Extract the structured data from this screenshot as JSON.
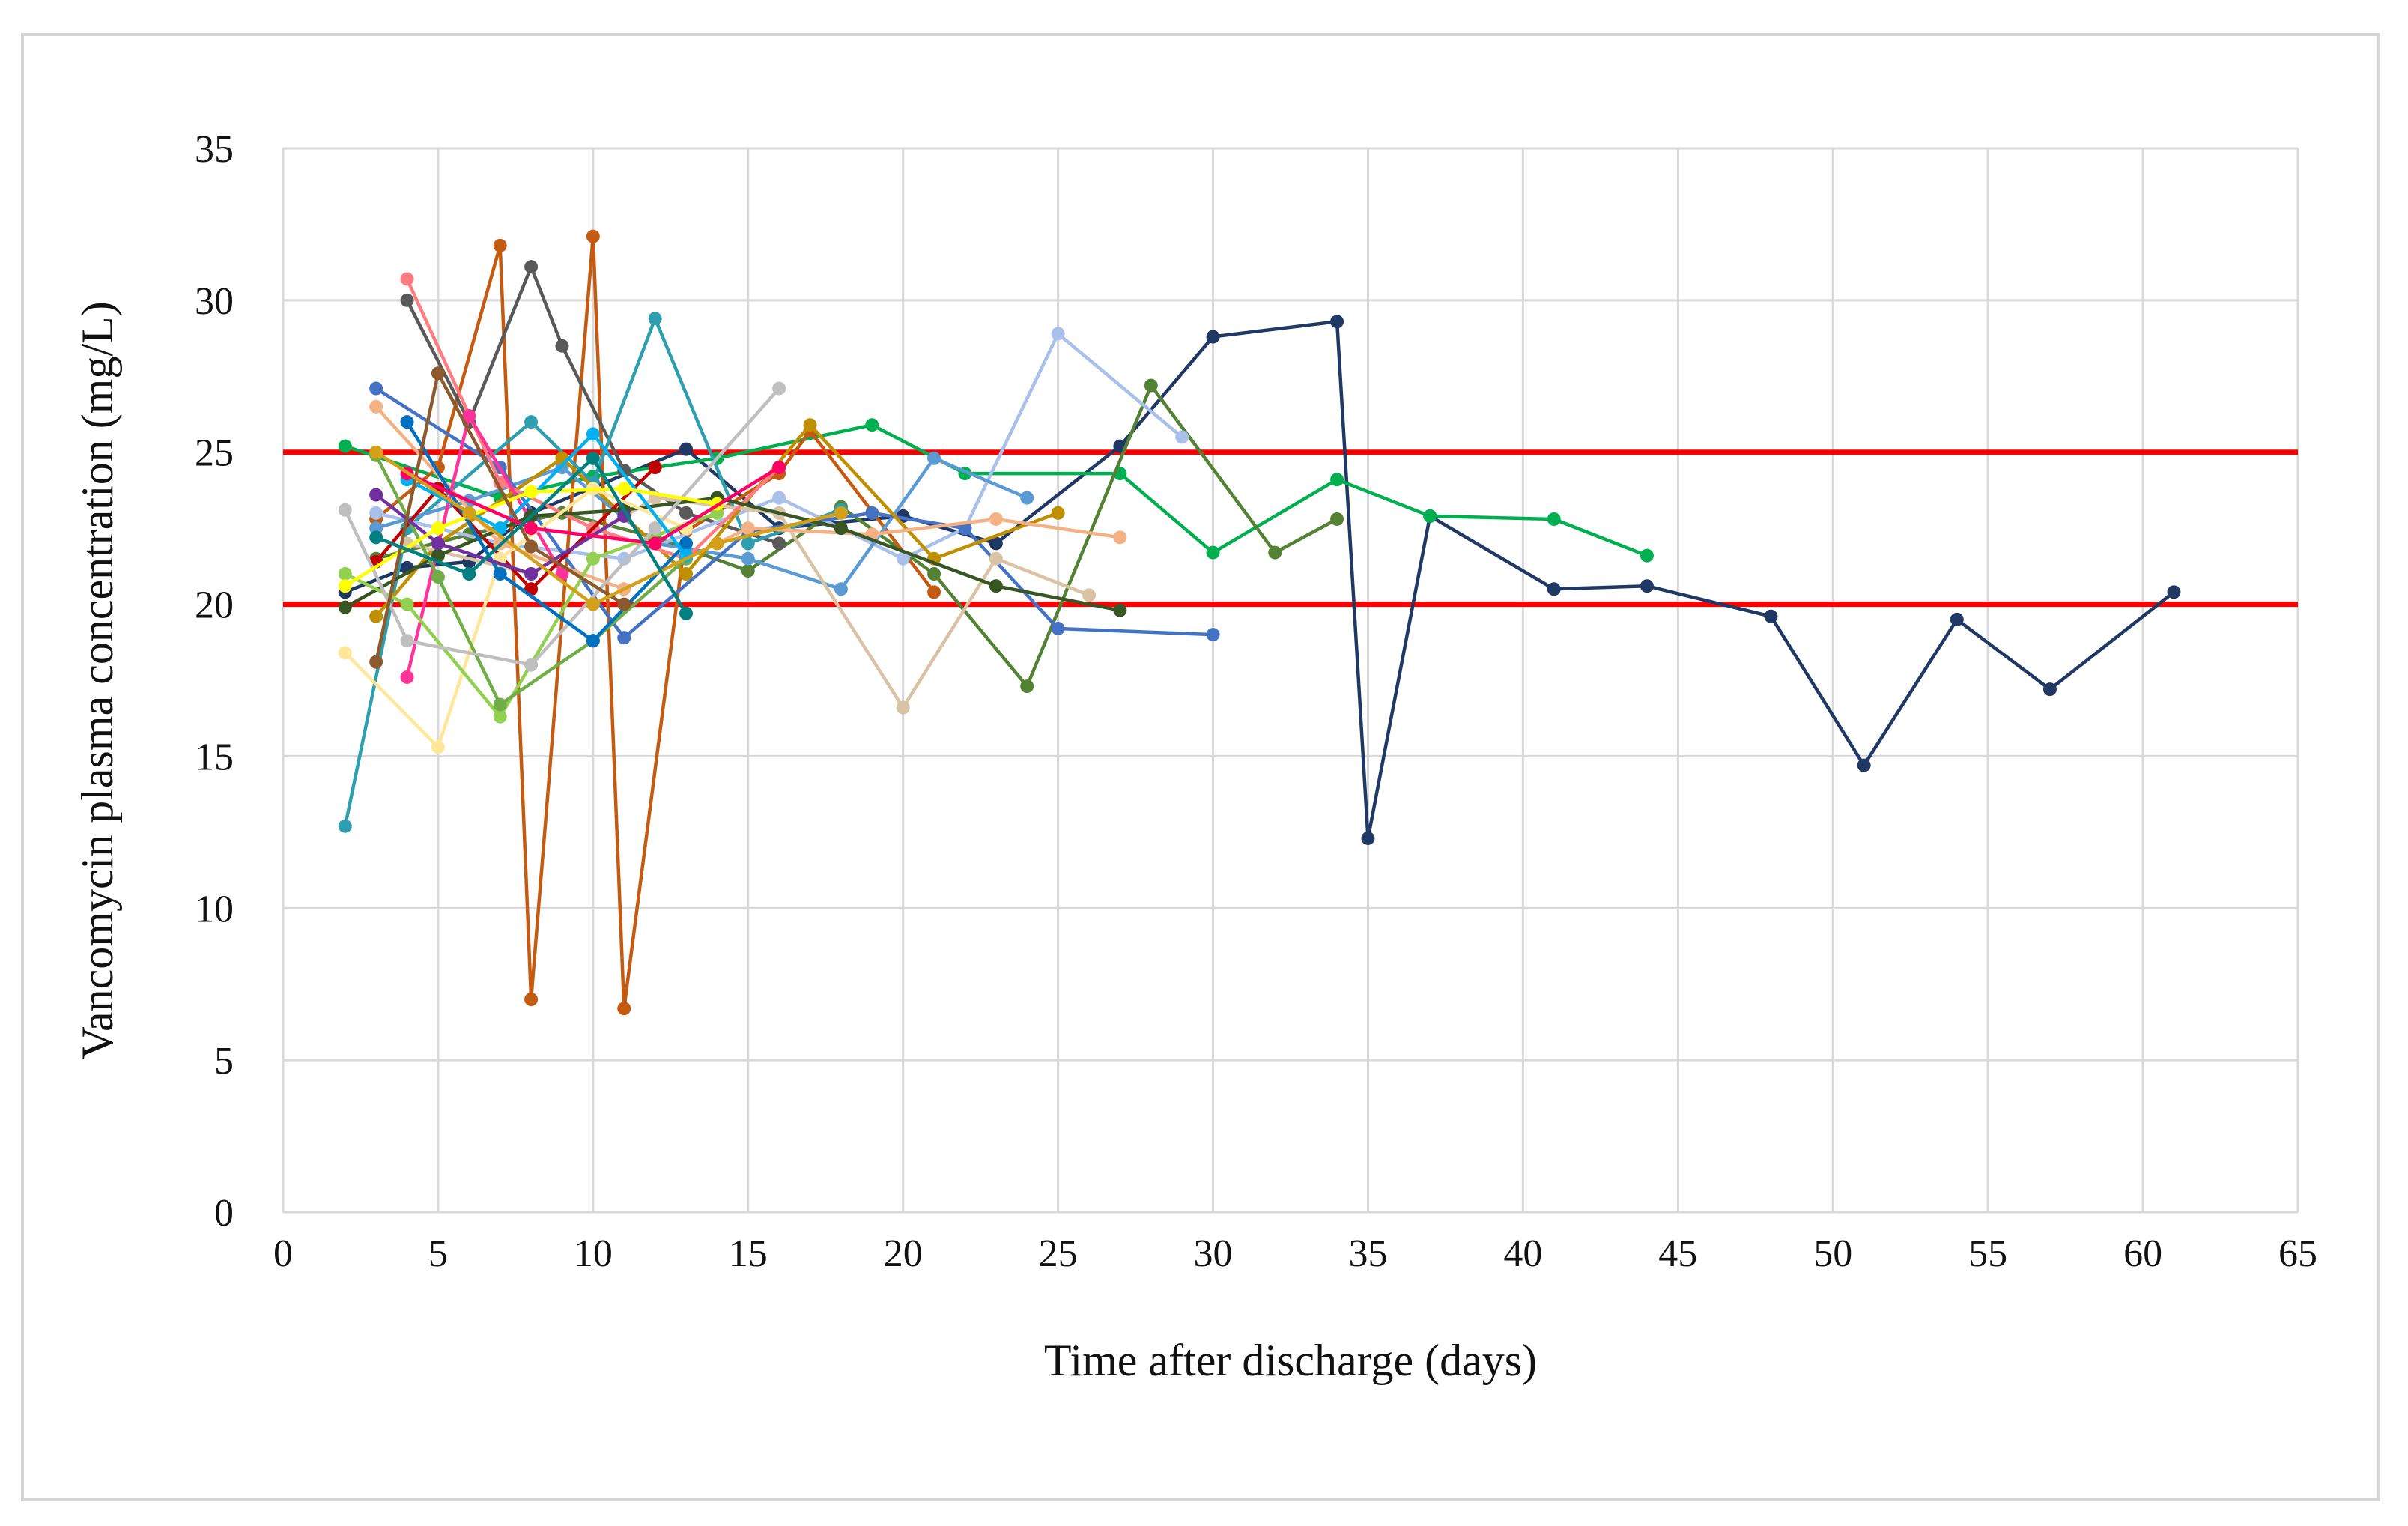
{
  "chart_data": {
    "type": "line",
    "xlabel": "Time after discharge (days)",
    "ylabel": "Vancomycin plasma concentration (mg/L)",
    "xlim": [
      0,
      65
    ],
    "ylim": [
      0,
      35
    ],
    "xticks": [
      0,
      5,
      10,
      15,
      20,
      25,
      30,
      35,
      40,
      45,
      50,
      55,
      60,
      65
    ],
    "yticks": [
      0,
      5,
      10,
      15,
      20,
      25,
      30,
      35
    ],
    "grid": true,
    "legend": "none",
    "reference_lines": [
      {
        "y": 25,
        "color": "#ff0000"
      },
      {
        "y": 20,
        "color": "#ff0000"
      }
    ],
    "series": [
      {
        "color": "#1f3864",
        "x": [
          2,
          4,
          6,
          8,
          13,
          16,
          20,
          23,
          27,
          30,
          34,
          35,
          37,
          41,
          44,
          48,
          51,
          54,
          57,
          61
        ],
        "y": [
          20.4,
          21.2,
          21.4,
          23.0,
          25.1,
          22.5,
          22.9,
          22.0,
          25.2,
          28.8,
          29.3,
          12.3,
          22.9,
          20.5,
          20.6,
          19.6,
          14.7,
          19.5,
          17.2,
          20.4
        ]
      },
      {
        "color": "#00b050",
        "x": [
          2,
          7,
          10,
          14,
          19,
          22,
          27,
          30,
          34,
          37,
          41,
          44
        ],
        "y": [
          25.2,
          23.5,
          24.2,
          24.8,
          25.9,
          24.3,
          24.3,
          21.7,
          24.1,
          22.9,
          22.8,
          21.6
        ]
      },
      {
        "color": "#548235",
        "x": [
          3,
          6,
          9,
          12,
          15,
          18,
          21,
          24,
          28,
          32,
          34
        ],
        "y": [
          21.5,
          22.3,
          23.0,
          22.2,
          21.1,
          23.2,
          21.0,
          17.3,
          27.2,
          21.7,
          22.8
        ]
      },
      {
        "color": "#c55a11",
        "x": [
          3,
          5,
          7,
          8,
          10,
          11,
          13,
          16,
          17,
          21
        ],
        "y": [
          22.8,
          24.5,
          31.8,
          7.0,
          32.1,
          6.7,
          22.4,
          24.3,
          25.7,
          20.4
        ]
      },
      {
        "color": "#595959",
        "x": [
          4,
          6,
          8,
          9,
          11,
          13,
          16
        ],
        "y": [
          30.0,
          26.0,
          31.1,
          28.5,
          24.4,
          23.0,
          22.0
        ]
      },
      {
        "color": "#2e9fae",
        "x": [
          2,
          4,
          8,
          10,
          12,
          15,
          18
        ],
        "y": [
          12.7,
          22.5,
          26.0,
          24.0,
          29.4,
          22.0,
          23.1
        ]
      },
      {
        "color": "#a9c0ea",
        "x": [
          3,
          7,
          11,
          16,
          20,
          22,
          25,
          29
        ],
        "y": [
          23.0,
          22.0,
          21.5,
          23.5,
          21.5,
          22.5,
          28.9,
          25.5
        ]
      },
      {
        "color": "#5b9bd5",
        "x": [
          3,
          6,
          9,
          12,
          15,
          18,
          21,
          24
        ],
        "y": [
          22.5,
          23.4,
          24.5,
          22.0,
          21.5,
          20.5,
          24.8,
          23.5
        ]
      },
      {
        "color": "#4472c4",
        "x": [
          3,
          7,
          11,
          15,
          19,
          22,
          25,
          30
        ],
        "y": [
          27.1,
          24.5,
          18.9,
          22.4,
          23.0,
          22.5,
          19.2,
          19.0
        ]
      },
      {
        "color": "#bf8f00",
        "x": [
          3,
          5,
          9,
          13,
          17,
          21,
          25
        ],
        "y": [
          19.6,
          22.0,
          24.8,
          21.0,
          25.9,
          21.5,
          23.0
        ]
      },
      {
        "color": "#d9c3a5",
        "x": [
          4,
          8,
          12,
          16,
          20,
          23,
          26
        ],
        "y": [
          22.0,
          21.0,
          23.5,
          23.0,
          16.6,
          21.5,
          20.3
        ]
      },
      {
        "color": "#f4b183",
        "x": [
          3,
          7,
          11,
          15,
          19,
          23,
          27
        ],
        "y": [
          26.5,
          22.0,
          20.5,
          22.5,
          22.3,
          22.8,
          22.2
        ]
      },
      {
        "color": "#ff7c80",
        "x": [
          4,
          7,
          10,
          13,
          16
        ],
        "y": [
          30.7,
          24.0,
          22.5,
          21.5,
          24.5
        ]
      },
      {
        "color": "#ff3399",
        "x": [
          4,
          6,
          9
        ],
        "y": [
          17.6,
          26.2,
          21.0
        ]
      },
      {
        "color": "#c00000",
        "x": [
          3,
          5,
          8,
          12
        ],
        "y": [
          21.4,
          23.8,
          20.5,
          24.5
        ]
      },
      {
        "color": "#375623",
        "x": [
          2,
          5,
          8,
          11,
          14,
          18,
          23,
          27
        ],
        "y": [
          19.9,
          21.6,
          22.9,
          23.1,
          23.5,
          22.5,
          20.6,
          19.8
        ]
      },
      {
        "color": "#ffe699",
        "x": [
          2,
          5,
          7,
          10,
          13
        ],
        "y": [
          18.4,
          15.3,
          21.5,
          23.8,
          22.5
        ]
      },
      {
        "color": "#92d050",
        "x": [
          2,
          4,
          7,
          10,
          14
        ],
        "y": [
          21.0,
          20.0,
          16.3,
          21.5,
          23.0
        ]
      },
      {
        "color": "#70ad47",
        "x": [
          3,
          5,
          7,
          10,
          13
        ],
        "y": [
          24.9,
          20.9,
          16.7,
          18.8,
          21.5
        ]
      },
      {
        "color": "#bfbfbf",
        "x": [
          2,
          4,
          8,
          12,
          16
        ],
        "y": [
          23.1,
          18.8,
          18.0,
          22.5,
          27.1
        ]
      },
      {
        "color": "#0070c0",
        "x": [
          4,
          7,
          10,
          13
        ],
        "y": [
          26.0,
          21.0,
          18.8,
          22.0
        ]
      },
      {
        "color": "#00b0f0",
        "x": [
          4,
          7,
          10,
          13
        ],
        "y": [
          24.1,
          22.5,
          25.6,
          21.6
        ]
      },
      {
        "color": "#7030a0",
        "x": [
          3,
          5,
          8,
          11
        ],
        "y": [
          23.6,
          22.0,
          21.0,
          22.9
        ]
      },
      {
        "color": "#ffff00",
        "x": [
          2,
          5,
          8,
          11,
          14
        ],
        "y": [
          20.6,
          22.5,
          23.7,
          23.8,
          23.3
        ]
      },
      {
        "color": "#8c5a2c",
        "x": [
          3,
          5,
          8,
          11
        ],
        "y": [
          18.1,
          27.6,
          21.9,
          20.0
        ]
      },
      {
        "color": "#ff0066",
        "x": [
          4,
          8,
          12,
          16
        ],
        "y": [
          24.3,
          22.5,
          22.0,
          24.5
        ]
      },
      {
        "color": "#d4a017",
        "x": [
          3,
          6,
          10,
          14,
          18
        ],
        "y": [
          25.0,
          23.0,
          20.0,
          22.0,
          23.0
        ]
      },
      {
        "color": "#008080",
        "x": [
          3,
          6,
          10,
          13
        ],
        "y": [
          22.2,
          21.0,
          24.8,
          19.7
        ]
      }
    ]
  }
}
